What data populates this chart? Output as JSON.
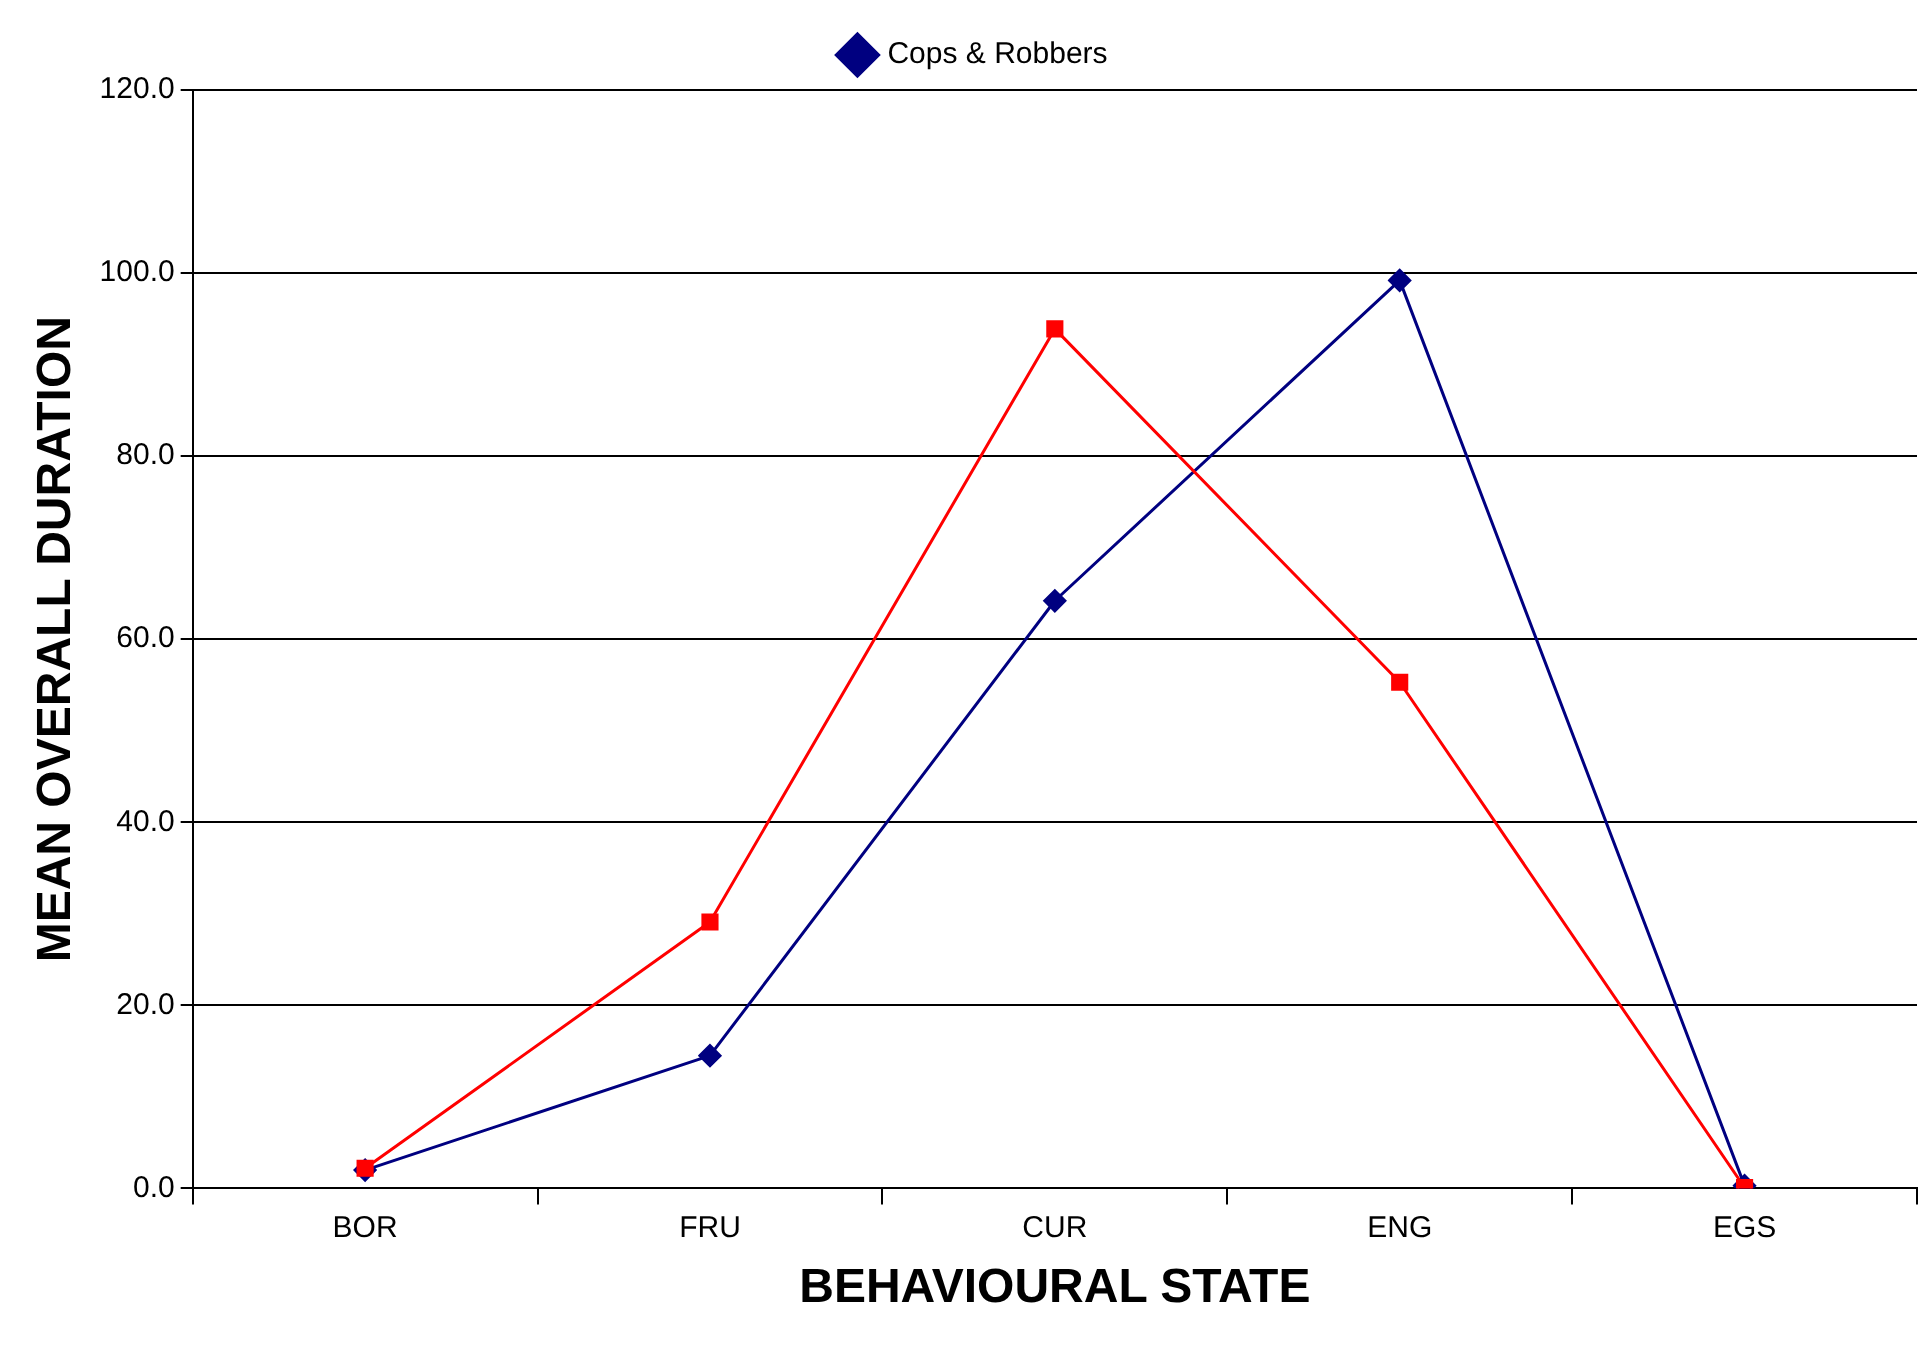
{
  "chart_data": {
    "type": "line",
    "xlabel": "BEHAVIOURAL STATE",
    "ylabel": "MEAN OVERALL DURATION",
    "categories": [
      "BOR",
      "FRU",
      "CUR",
      "ENG",
      "EGS"
    ],
    "series": [
      {
        "name": "Cops & Robbers",
        "color": "#000080",
        "marker": "diamond",
        "values": [
          2.0,
          14.5,
          64.2,
          99.2,
          0.3
        ]
      },
      {
        "color": "#ff0000",
        "marker": "square",
        "values": [
          2.2,
          29.1,
          93.9,
          55.3,
          0.1
        ]
      }
    ],
    "ylim": [
      0,
      120
    ],
    "yticks": [
      {
        "value": 0,
        "label": "0.0"
      },
      {
        "value": 20,
        "label": "20.0"
      },
      {
        "value": 40,
        "label": "40.0"
      },
      {
        "value": 60,
        "label": "60.0"
      },
      {
        "value": 80,
        "label": "80.0"
      },
      {
        "value": 100,
        "label": "100.0"
      },
      {
        "value": 120,
        "label": "120.0"
      }
    ],
    "grid": "y",
    "legend": "top",
    "line_style": "solid"
  }
}
